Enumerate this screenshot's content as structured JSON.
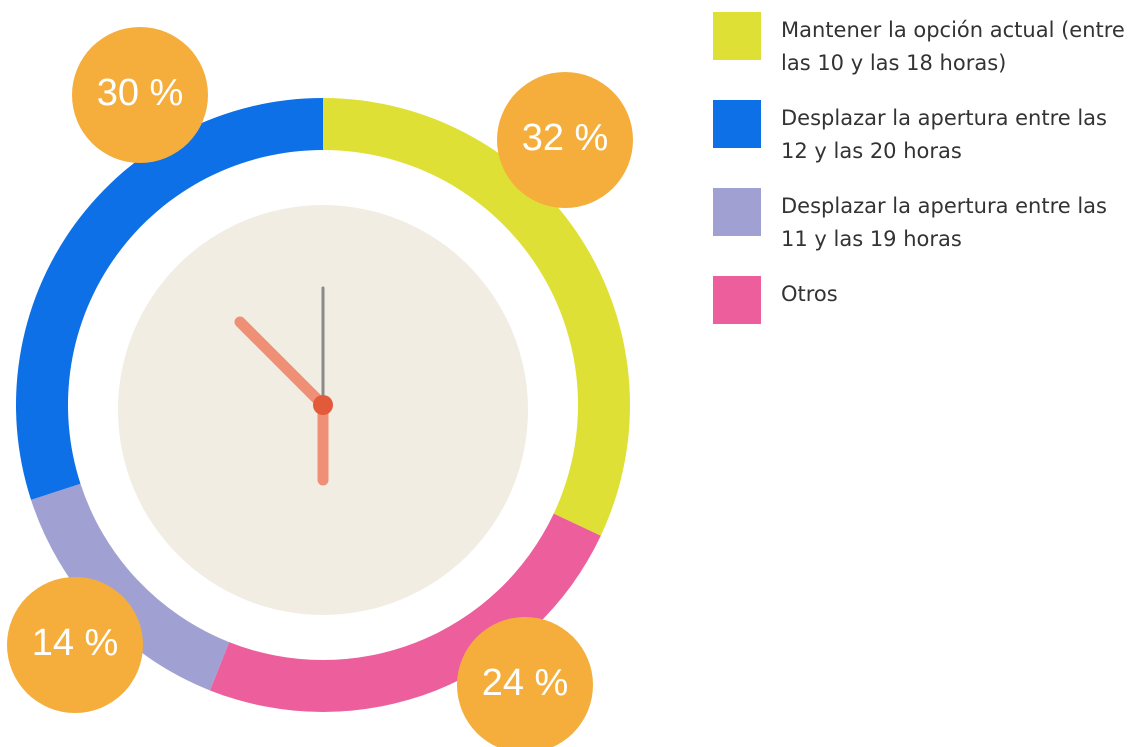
{
  "chart_data": {
    "type": "donut",
    "categories": [
      "Mantener la opción actual (entre las 10 y las 18 horas)",
      "Desplazar la apertura entre las 12 y las 20 horas",
      "Desplazar la apertura entre las 11 y las 19 horas",
      "Otros"
    ],
    "values": [
      32,
      30,
      14,
      24
    ],
    "value_labels": [
      "32 %",
      "30 %",
      "14 %",
      "24 %"
    ],
    "colors": [
      "#dfe035",
      "#0d70e6",
      "#a0a1d2",
      "#ec5f9c"
    ],
    "legend": "top-right"
  }
}
